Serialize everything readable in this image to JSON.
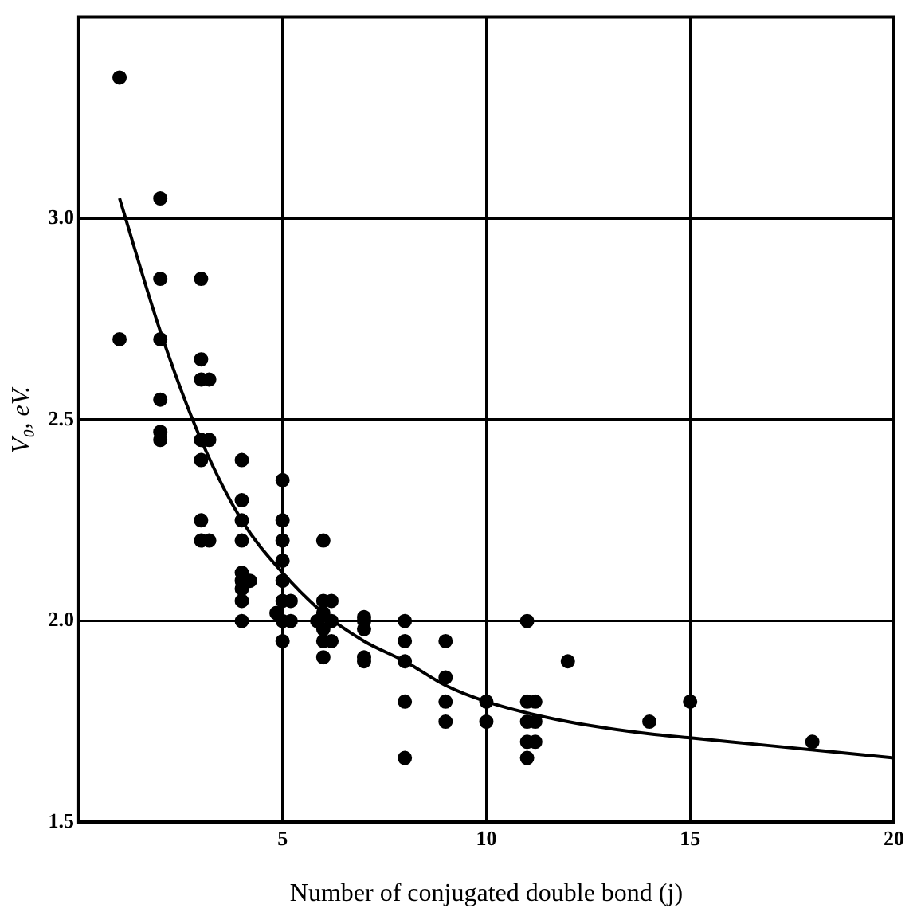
{
  "chart_data": {
    "type": "scatter",
    "xlabel": "Number of conjugated double bond (j)",
    "ylabel": "V₀, eV.",
    "xlim": [
      0,
      20
    ],
    "xticks": [
      5,
      10,
      15,
      20
    ],
    "ylim": [
      1.5,
      3.5
    ],
    "yticks": [
      {
        "value": 1.5,
        "label": "1.5"
      },
      {
        "value": 2,
        "label": "2.0"
      },
      {
        "value": 2.5,
        "label": "2.5"
      },
      {
        "value": 3,
        "label": "3.0"
      }
    ],
    "grid": true,
    "legend": false,
    "marker": "circle",
    "series": [
      {
        "color": "#000000",
        "x": [
          1,
          1,
          2,
          2,
          2,
          2,
          2,
          2,
          3,
          3,
          3,
          3.2,
          3,
          3.2,
          3,
          3,
          3,
          3.2,
          4,
          4,
          4,
          4,
          4,
          4,
          4.2,
          4,
          4,
          4,
          5,
          5,
          5,
          5,
          5,
          5,
          5.2,
          4.85,
          5,
          5.2,
          5,
          6,
          6,
          6.2,
          6,
          5.85,
          6.2,
          6,
          6,
          6.2,
          6,
          7,
          7,
          7,
          7,
          7,
          8,
          8,
          8,
          8,
          8,
          9,
          9,
          9,
          9,
          10,
          10,
          11,
          11,
          11.2,
          11,
          11.2,
          11,
          11.2,
          11,
          12,
          14,
          15,
          18
        ],
        "values": [
          3.35,
          2.7,
          3.05,
          2.85,
          2.7,
          2.55,
          2.47,
          2.45,
          2.85,
          2.65,
          2.6,
          2.6,
          2.45,
          2.45,
          2.4,
          2.25,
          2.2,
          2.2,
          2.4,
          2.3,
          2.25,
          2.2,
          2.12,
          2.1,
          2.1,
          2.08,
          2.05,
          2,
          2.35,
          2.25,
          2.2,
          2.15,
          2.1,
          2.05,
          2.05,
          2.02,
          2,
          2,
          1.95,
          2.2,
          2.05,
          2.05,
          2.02,
          2,
          2,
          1.98,
          1.95,
          1.95,
          1.91,
          2.01,
          2,
          1.98,
          1.91,
          1.9,
          2,
          1.95,
          1.9,
          1.8,
          1.66,
          1.95,
          1.86,
          1.8,
          1.75,
          1.8,
          1.75,
          2,
          1.8,
          1.8,
          1.75,
          1.75,
          1.7,
          1.7,
          1.66,
          1.9,
          1.75,
          1.8,
          1.7
        ]
      },
      {
        "type": "line",
        "color": "#000000",
        "marker": "none",
        "x": [
          1,
          2,
          3,
          4,
          5,
          6,
          7,
          8,
          9,
          10,
          12,
          14,
          15,
          17,
          20
        ],
        "values": [
          3.05,
          2.72,
          2.45,
          2.25,
          2.12,
          2.02,
          1.95,
          1.9,
          1.84,
          1.8,
          1.75,
          1.72,
          1.71,
          1.69,
          1.66
        ]
      }
    ]
  }
}
